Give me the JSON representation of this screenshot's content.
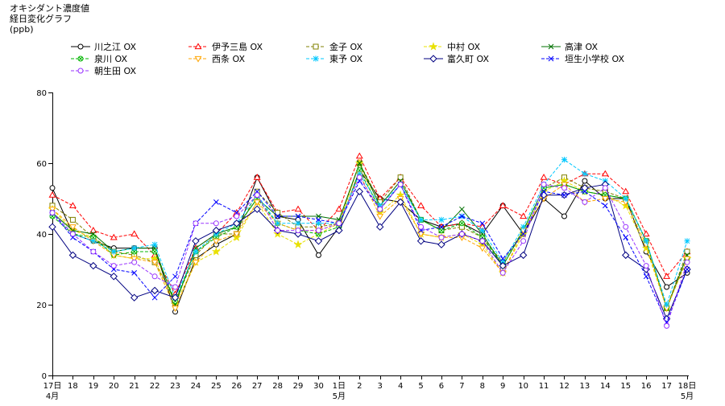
{
  "chart_data": {
    "type": "line",
    "title": "オキシダント濃度値",
    "subtitle": "経日変化グラフ",
    "ylabel": "(ppb)",
    "ylim": [
      0,
      80
    ],
    "yticks": [
      0,
      20,
      40,
      60,
      80
    ],
    "grid": false,
    "legend_position": "top",
    "categories": [
      "17日",
      "18",
      "19",
      "20",
      "21",
      "22",
      "23",
      "24",
      "25",
      "26",
      "27",
      "28",
      "29",
      "30",
      "1日",
      "2",
      "3",
      "4",
      "5",
      "6",
      "7",
      "8",
      "9",
      "10",
      "11",
      "12",
      "13",
      "14",
      "15",
      "16",
      "17",
      "18日"
    ],
    "month_labels": [
      {
        "category": "17日",
        "label": "4月"
      },
      {
        "category": "1日",
        "label": "5月"
      },
      {
        "category": "18日",
        "label": "5月"
      }
    ],
    "series": [
      {
        "name": "川之江 OX",
        "color": "#000000",
        "marker": "circle",
        "dashed": false,
        "values": [
          53,
          40,
          38,
          36,
          36,
          36,
          18,
          33,
          37,
          40,
          56,
          45,
          44,
          34,
          42,
          58,
          50,
          49,
          44,
          42,
          43,
          40,
          48,
          40,
          50,
          45,
          55,
          50,
          50,
          35,
          25,
          29
        ]
      },
      {
        "name": "伊予三島 OX",
        "color": "#ff0000",
        "marker": "triangle",
        "dashed": true,
        "values": [
          51,
          48,
          41,
          39,
          40,
          34,
          23,
          36,
          40,
          46,
          56,
          46,
          47,
          41,
          47,
          62,
          50,
          56,
          48,
          42,
          43,
          42,
          48,
          45,
          56,
          54,
          57,
          57,
          52,
          40,
          28,
          35
        ]
      },
      {
        "name": "金子 OX",
        "color": "#808000",
        "marker": "square",
        "dashed": true,
        "values": [
          48,
          44,
          39,
          35,
          34,
          32,
          21,
          34,
          40,
          40,
          52,
          46,
          42,
          42,
          43,
          60,
          49,
          56,
          44,
          41,
          42,
          39,
          32,
          41,
          53,
          56,
          53,
          52,
          50,
          38,
          19,
          35
        ]
      },
      {
        "name": "中村 OX",
        "color": "#e8e000",
        "marker": "star",
        "dashed": true,
        "values": [
          47,
          41,
          39,
          34,
          33,
          33,
          20,
          32,
          35,
          39,
          49,
          40,
          37,
          40,
          43,
          60,
          46,
          51,
          40,
          39,
          40,
          37,
          29,
          40,
          52,
          55,
          52,
          51,
          48,
          36,
          19,
          33
        ]
      },
      {
        "name": "高津 OX",
        "color": "#007000",
        "marker": "cross",
        "dashed": false,
        "values": [
          46,
          41,
          40,
          35,
          36,
          36,
          20,
          36,
          40,
          42,
          50,
          45,
          45,
          45,
          44,
          60,
          48,
          55,
          44,
          41,
          47,
          40,
          31,
          41,
          53,
          54,
          52,
          51,
          50,
          38,
          19,
          34
        ]
      },
      {
        "name": "泉川 OX",
        "color": "#00b400",
        "marker": "circle-cross",
        "dashed": true,
        "values": [
          45,
          40,
          39,
          34,
          35,
          35,
          21,
          35,
          39,
          42,
          50,
          43,
          41,
          40,
          42,
          58,
          47,
          54,
          44,
          41,
          43,
          39,
          31,
          41,
          53,
          54,
          52,
          51,
          50,
          38,
          19,
          33
        ]
      },
      {
        "name": "西条 OX",
        "color": "#ffa500",
        "marker": "triangle-down",
        "dashed": true,
        "values": [
          47,
          42,
          38,
          34,
          33,
          32,
          19,
          32,
          38,
          40,
          49,
          43,
          41,
          41,
          43,
          57,
          45,
          50,
          40,
          39,
          39,
          36,
          29,
          41,
          50,
          54,
          49,
          50,
          49,
          37,
          19,
          33
        ]
      },
      {
        "name": "東予 OX",
        "color": "#00c8ff",
        "marker": "asterisk",
        "dashed": true,
        "values": [
          46,
          40,
          38,
          35,
          36,
          37,
          22,
          35,
          40,
          43,
          51,
          43,
          43,
          43,
          43,
          57,
          48,
          54,
          44,
          44,
          45,
          41,
          32,
          42,
          54,
          61,
          57,
          55,
          50,
          38,
          20,
          38
        ]
      },
      {
        "name": "富久町 OX",
        "color": "#000080",
        "marker": "diamond",
        "dashed": false,
        "values": [
          42,
          34,
          31,
          28,
          22,
          24,
          22,
          38,
          41,
          43,
          47,
          41,
          40,
          38,
          41,
          52,
          42,
          49,
          38,
          37,
          40,
          38,
          31,
          34,
          51,
          51,
          53,
          54,
          34,
          30,
          16,
          30
        ]
      },
      {
        "name": "垣生小学校 OX",
        "color": "#0000ff",
        "marker": "cross",
        "dashed": true,
        "values": [
          46,
          39,
          35,
          30,
          29,
          22,
          28,
          43,
          49,
          46,
          52,
          45,
          45,
          44,
          43,
          55,
          47,
          54,
          41,
          42,
          45,
          43,
          33,
          40,
          52,
          51,
          52,
          48,
          39,
          28,
          15,
          30
        ]
      },
      {
        "name": "朝生田 OX",
        "color": "#9933ff",
        "marker": "circle",
        "dashed": true,
        "values": [
          46,
          40,
          35,
          31,
          32,
          28,
          25,
          43,
          43,
          45,
          51,
          41,
          41,
          41,
          43,
          56,
          47,
          54,
          42,
          39,
          40,
          38,
          29,
          38,
          54,
          53,
          49,
          53,
          42,
          31,
          14,
          32
        ]
      }
    ]
  }
}
